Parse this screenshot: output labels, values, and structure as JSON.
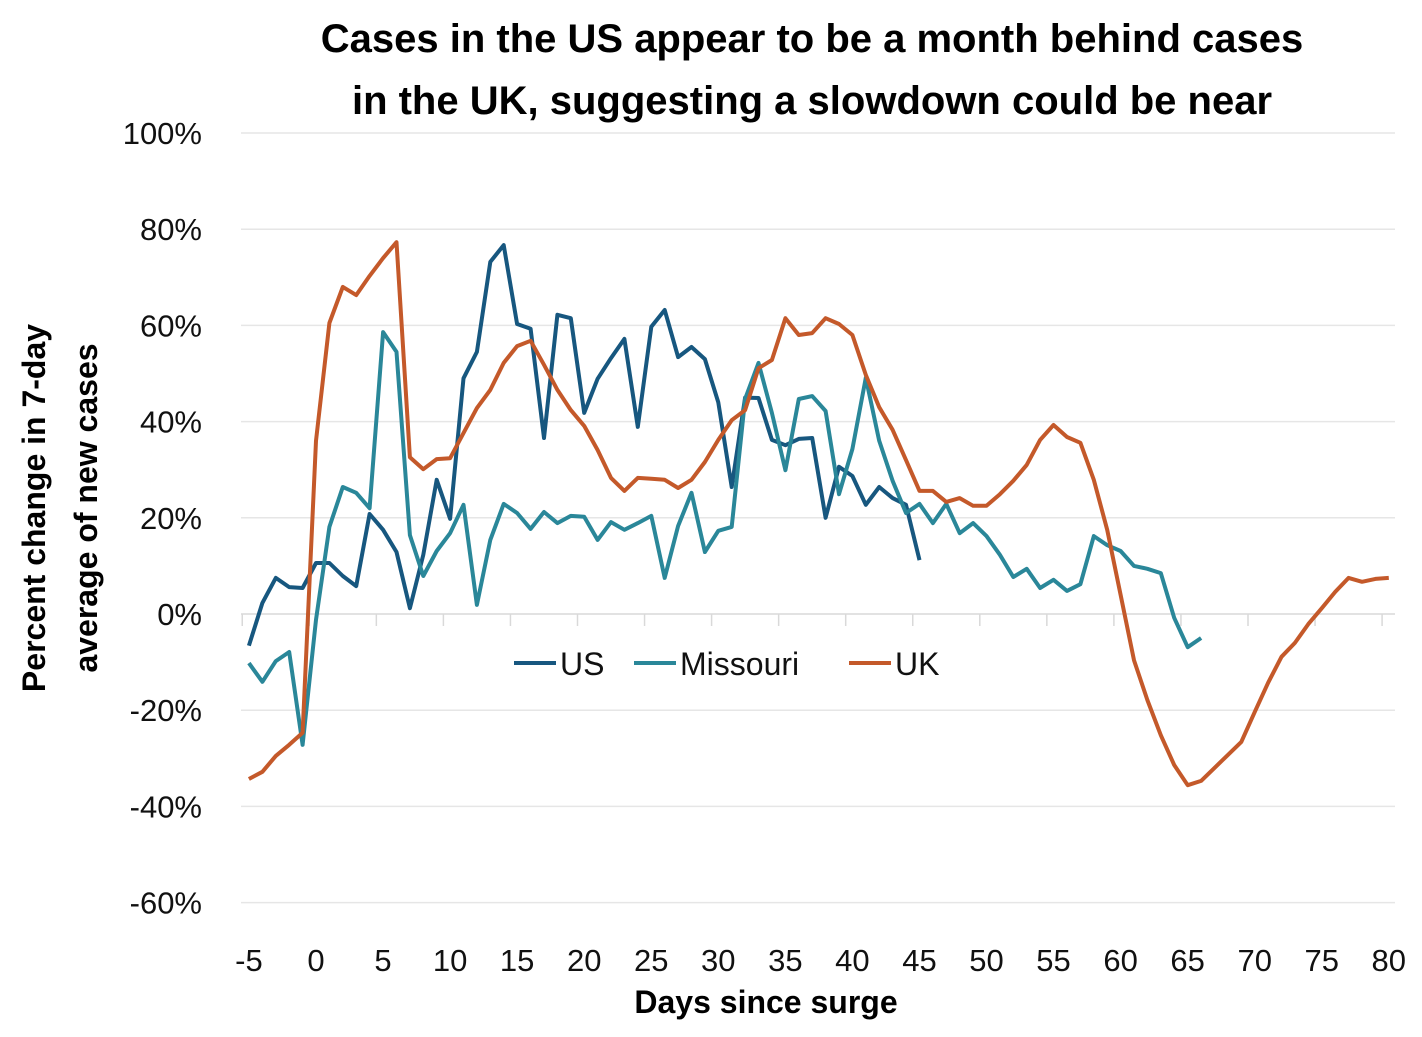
{
  "chart_data": {
    "type": "line",
    "title_lines": [
      "Cases in the US appear to be a month behind cases",
      "in the UK, suggesting a slowdown could be near"
    ],
    "xlabel": "Days since surge",
    "ylabel_lines": [
      "Percent change in 7-day",
      "average of new cases"
    ],
    "xlim": [
      -5,
      80
    ],
    "ylim": [
      -60,
      100
    ],
    "x_ticks": [
      -5,
      0,
      5,
      10,
      15,
      20,
      25,
      30,
      35,
      40,
      45,
      50,
      55,
      60,
      65,
      70,
      75,
      80
    ],
    "y_ticks": [
      "100%",
      "80%",
      "60%",
      "40%",
      "20%",
      "0%",
      "-20%",
      "-40%",
      "-60%"
    ],
    "y_tick_values": [
      100,
      80,
      60,
      40,
      20,
      0,
      -20,
      -40,
      -60
    ],
    "grid": "horizontal",
    "legend_position": "center",
    "series": [
      {
        "name": "US",
        "color": "#17577f",
        "x_start": -5,
        "values": [
          -6.6,
          2.3,
          7.5,
          5.6,
          5.4,
          10.6,
          10.6,
          7.9,
          5.8,
          20.8,
          17.5,
          12.9,
          1.2,
          12.3,
          27.9,
          19.8,
          49,
          54.5,
          73.2,
          76.7,
          60.3,
          59.3,
          36.6,
          62.2,
          61.5,
          41.8,
          48.9,
          53.2,
          57.2,
          38.9,
          59.7,
          63.2,
          53.4,
          55.5,
          53,
          44,
          26.4,
          45,
          44.9,
          36.2,
          35.1,
          36.4,
          36.6,
          20,
          30.6,
          28.7,
          22.7,
          26.4,
          24.1,
          22.7,
          11.2
        ]
      },
      {
        "name": "Missouri",
        "color": "#2a8799",
        "x_start": -5,
        "values": [
          -10.2,
          -14.1,
          -9.8,
          -7.9,
          -27.2,
          -1.2,
          18.1,
          26.4,
          25.2,
          22,
          58.6,
          54.5,
          16.4,
          7.9,
          13.1,
          16.8,
          22.7,
          1.9,
          15.4,
          22.9,
          21,
          17.7,
          21.2,
          18.9,
          20.4,
          20.2,
          15.4,
          19.1,
          17.5,
          18.9,
          20.4,
          7.5,
          18.3,
          25.2,
          12.9,
          17.3,
          18.1,
          44.7,
          52.2,
          41.8,
          29.9,
          44.7,
          45.3,
          42.2,
          24.9,
          34.3,
          49.1,
          36,
          27.7,
          21,
          22.9,
          18.9,
          22.9,
          16.8,
          18.9,
          16.2,
          12.3,
          7.7,
          9.4,
          5.4,
          7.1,
          4.8,
          6.2,
          16.2,
          14.3,
          13.1,
          10,
          9.4,
          8.5,
          -0.8,
          -6.9,
          -5
        ]
      },
      {
        "name": "UK",
        "color": "#c4592a",
        "x_start": -5,
        "values": [
          -34.3,
          -32.8,
          -29.5,
          -27.2,
          -24.7,
          36,
          60.5,
          68,
          66.3,
          70.3,
          74,
          77.3,
          32.6,
          30.1,
          32.2,
          32.4,
          37.6,
          42.8,
          46.6,
          52.2,
          55.7,
          56.8,
          51.8,
          46.6,
          42.4,
          39.1,
          34.1,
          28.3,
          25.6,
          28.3,
          28.1,
          27.9,
          26.2,
          27.9,
          31.6,
          36.2,
          40.3,
          42.4,
          51.1,
          52.8,
          61.5,
          58,
          58.4,
          61.5,
          60.3,
          58,
          49.7,
          43,
          38.3,
          32,
          25.6,
          25.6,
          23.3,
          24.1,
          22.5,
          22.5,
          24.9,
          27.7,
          31,
          36.2,
          39.3,
          36.8,
          35.6,
          27.9,
          17.5,
          4,
          -9.6,
          -17.9,
          -25.2,
          -31.4,
          -35.6,
          -34.7,
          -32,
          -29.3,
          -26.6,
          -20.4,
          -14.3,
          -8.9,
          -6,
          -2.1,
          1.2,
          4.6,
          7.5,
          6.7,
          7.3,
          7.5
        ]
      }
    ]
  }
}
